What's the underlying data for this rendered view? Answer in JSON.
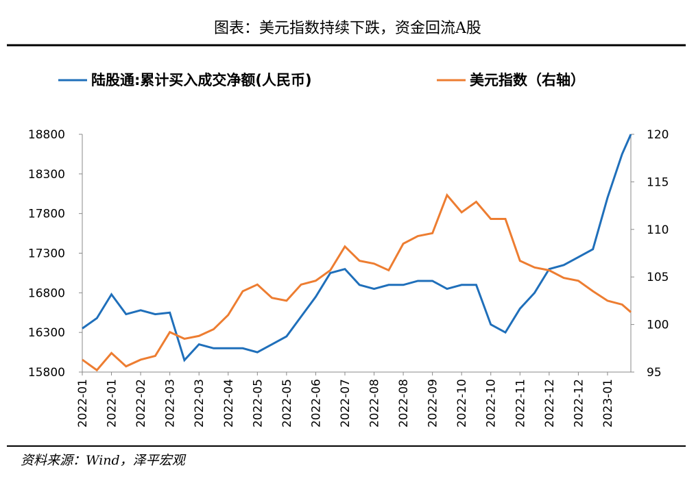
{
  "chart_data": {
    "type": "line",
    "title": "图表：美元指数持续下跌，资金回流A股",
    "source": "资料来源：Wind，泽平宏观",
    "x": [
      0,
      0.5,
      1,
      1.5,
      2,
      2.5,
      3,
      3.5,
      4,
      4.5,
      5,
      5.5,
      6,
      6.5,
      7,
      7.5,
      8,
      8.5,
      9,
      9.5,
      10,
      10.5,
      11,
      11.5,
      12,
      12.5,
      13,
      13.5,
      14,
      14.5,
      15,
      15.5,
      16,
      16.5,
      17,
      17.5,
      18,
      18.5,
      18.8
    ],
    "xlim": [
      0,
      18.8
    ],
    "xticks": [
      {
        "value": 0,
        "label": "2022-01"
      },
      {
        "value": 1,
        "label": "2022-01"
      },
      {
        "value": 2,
        "label": "2022-02"
      },
      {
        "value": 3,
        "label": "2022-03"
      },
      {
        "value": 4,
        "label": "2022-03"
      },
      {
        "value": 5,
        "label": "2022-04"
      },
      {
        "value": 6,
        "label": "2022-05"
      },
      {
        "value": 7,
        "label": "2022-05"
      },
      {
        "value": 8,
        "label": "2022-06"
      },
      {
        "value": 9,
        "label": "2022-07"
      },
      {
        "value": 10,
        "label": "2022-08"
      },
      {
        "value": 11,
        "label": "2022-08"
      },
      {
        "value": 12,
        "label": "2022-09"
      },
      {
        "value": 13,
        "label": "2022-10"
      },
      {
        "value": 14,
        "label": "2022-10"
      },
      {
        "value": 15,
        "label": "2022-11"
      },
      {
        "value": 16,
        "label": "2022-12"
      },
      {
        "value": 17,
        "label": "2022-12"
      },
      {
        "value": 18,
        "label": "2023-01"
      }
    ],
    "ylim": [
      15800,
      18800
    ],
    "yticks": [
      15800,
      16300,
      16800,
      17300,
      17800,
      18300,
      18800
    ],
    "y2lim": [
      95,
      120
    ],
    "y2ticks": [
      95,
      100,
      105,
      110,
      115,
      120
    ],
    "series": [
      {
        "name": "陆股通:累计买入成交净额(人民币)",
        "color": "#1f6fba",
        "axis": "y",
        "values": [
          16350,
          16480,
          16780,
          16530,
          16580,
          16530,
          16550,
          15950,
          16150,
          16100,
          16100,
          16100,
          16050,
          16150,
          16250,
          16500,
          16750,
          17050,
          17100,
          16900,
          16850,
          16900,
          16900,
          16950,
          16950,
          16850,
          16900,
          16900,
          16400,
          16300,
          16600,
          16800,
          17100,
          17150,
          17250,
          17350,
          18000,
          18550,
          18800
        ]
      },
      {
        "name": "美元指数（右轴）",
        "color": "#ed7d31",
        "axis": "y2",
        "values": [
          96.3,
          95.2,
          97,
          95.6,
          96.3,
          96.7,
          99.2,
          98.5,
          98.8,
          99.5,
          101,
          103.5,
          104.2,
          102.8,
          102.5,
          104.2,
          104.6,
          105.7,
          108.2,
          106.7,
          106.4,
          105.7,
          108.5,
          109.3,
          109.6,
          113.6,
          111.8,
          112.9,
          111.1,
          111.1,
          106.7,
          106,
          105.7,
          104.9,
          104.6,
          103.5,
          102.5,
          102.1,
          101.3
        ]
      }
    ]
  }
}
